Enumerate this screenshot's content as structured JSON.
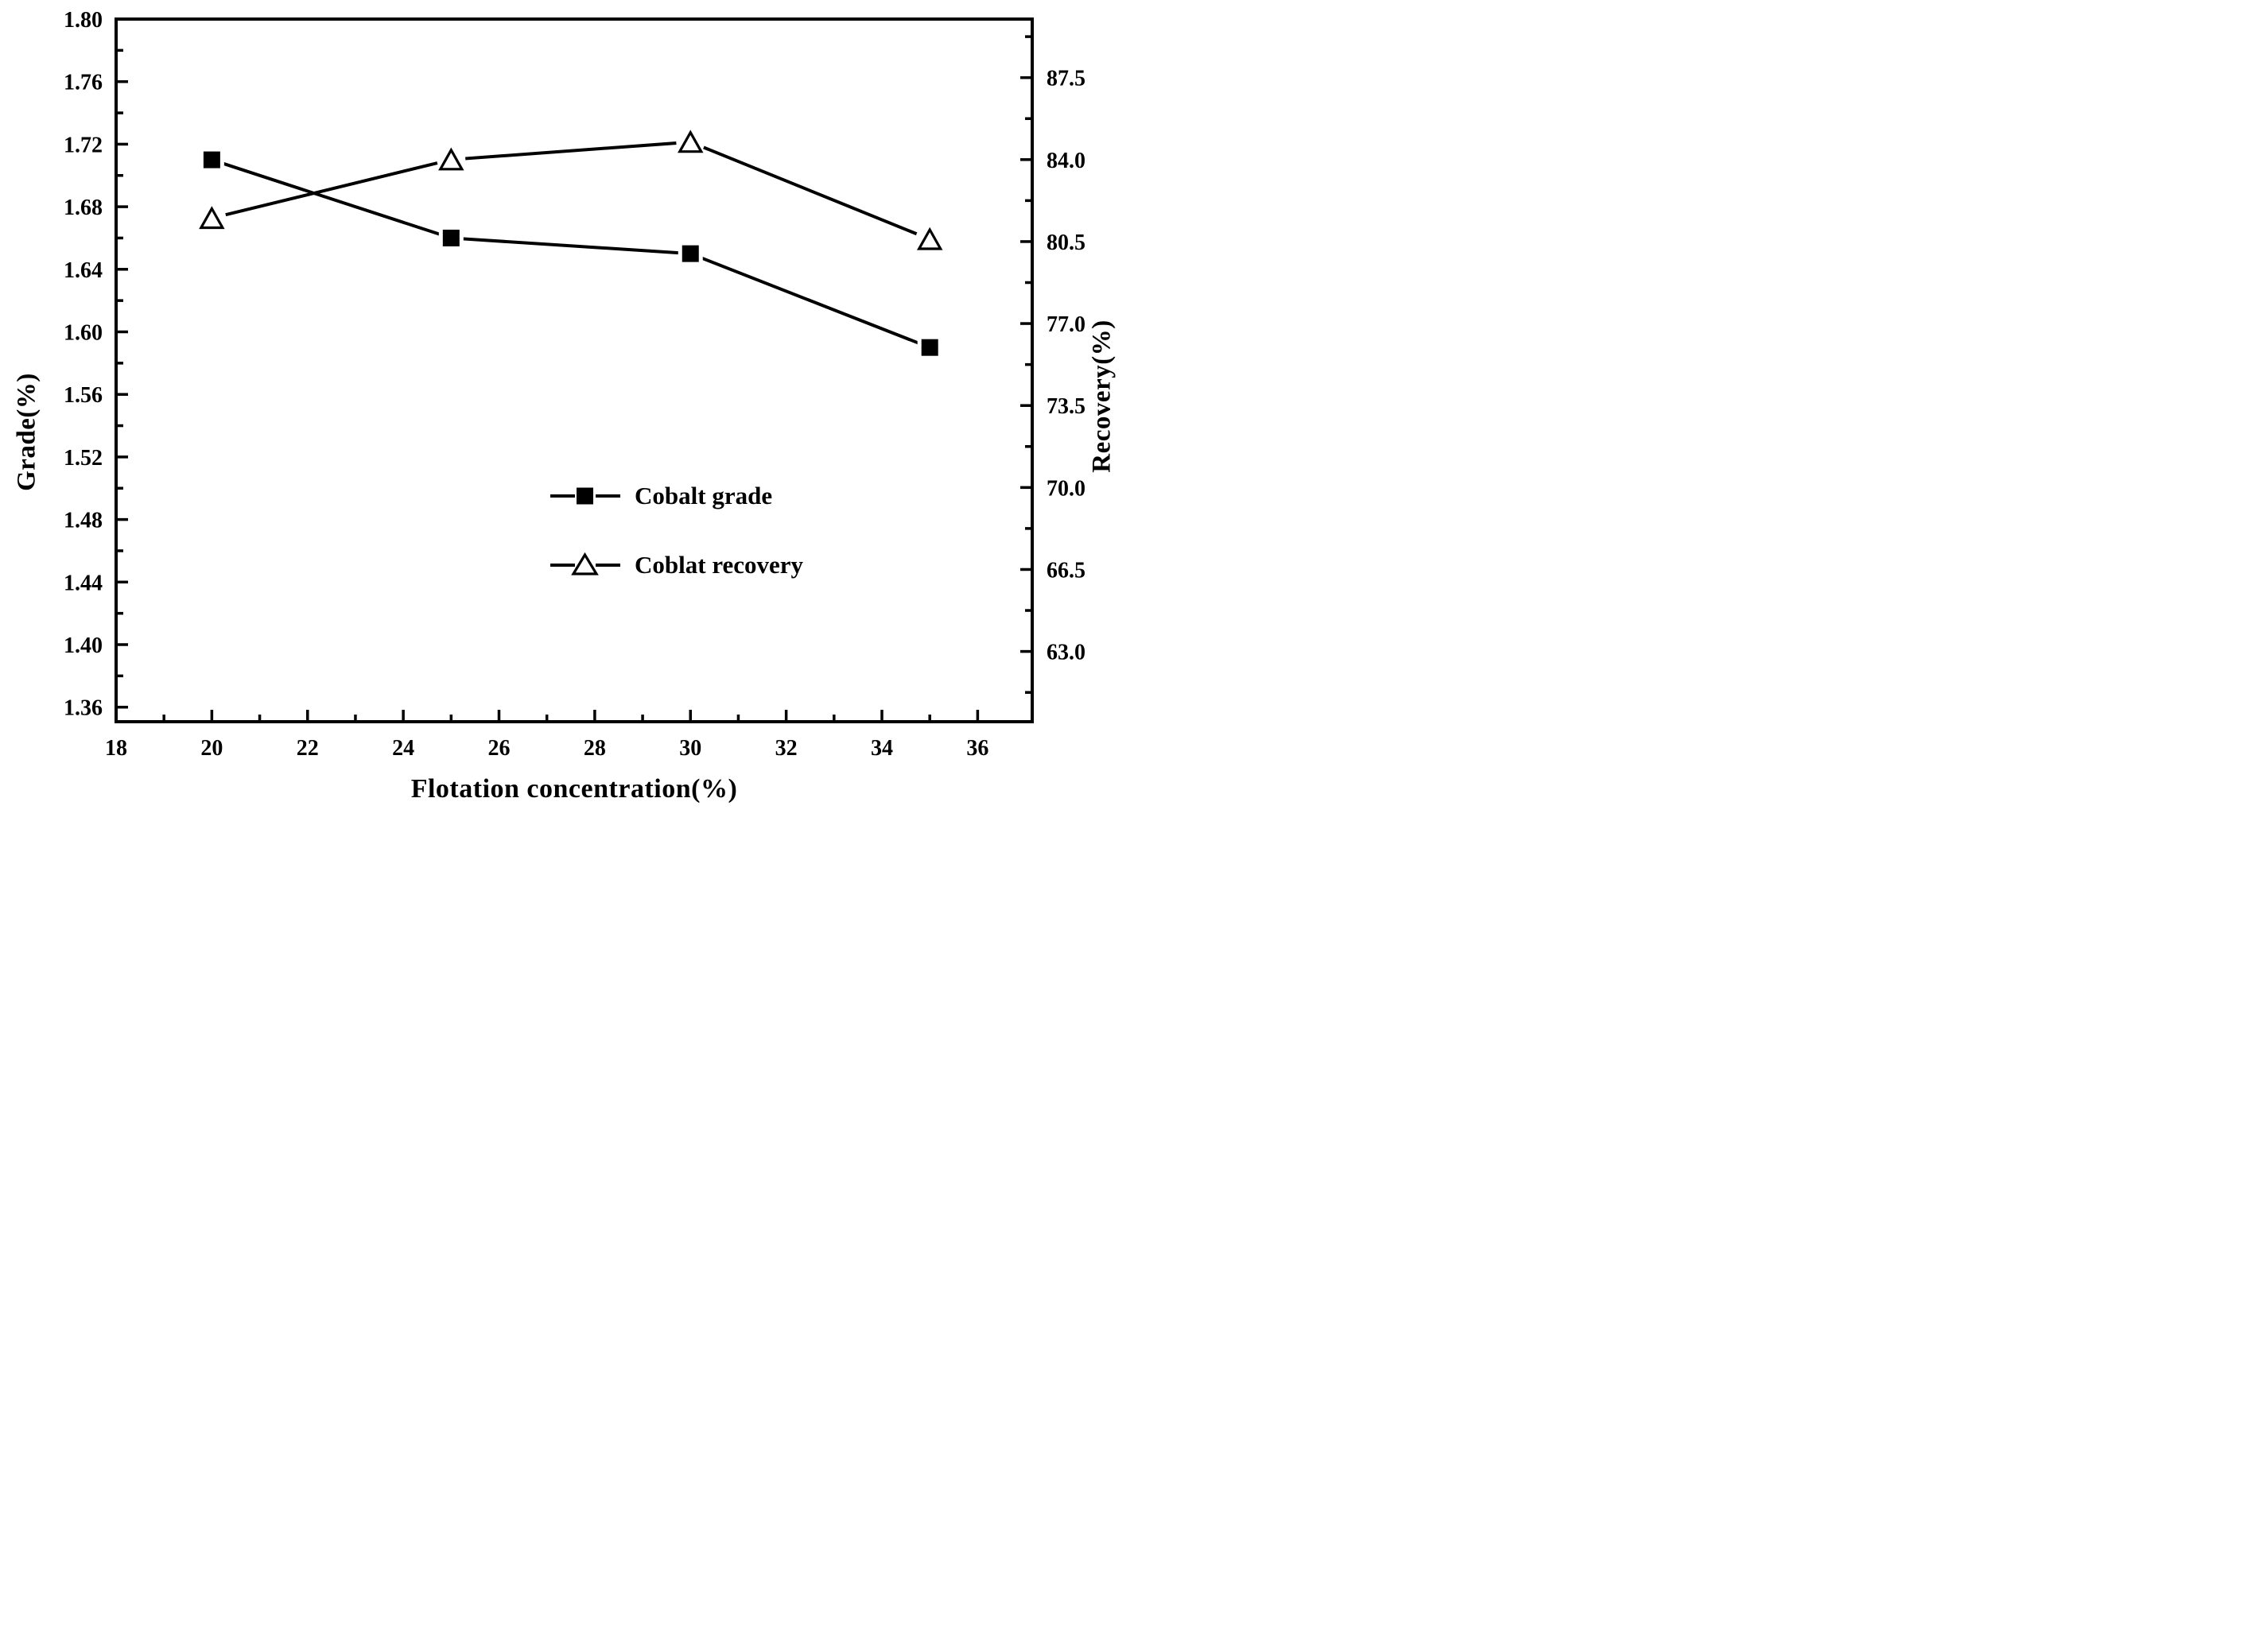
{
  "chart_data": {
    "type": "line",
    "title": "",
    "xlabel": "Flotation concentration(%)",
    "ylabel_left": "Grade(%)",
    "ylabel_right": "Recovery(%)",
    "grid": false,
    "background_color": "#ffffff",
    "foreground_color": "#000000",
    "x_axis": {
      "min": 18,
      "max": 37.14,
      "major_ticks": [
        18,
        20,
        22,
        24,
        26,
        28,
        30,
        32,
        34,
        36
      ],
      "tick_labels": [
        "18",
        "20",
        "22",
        "24",
        "26",
        "28",
        "30",
        "32",
        "34",
        "36"
      ],
      "minor_ticks": [
        19,
        21,
        23,
        25,
        27,
        29,
        31,
        33,
        35
      ]
    },
    "y_axis_left": {
      "min": 1.3507,
      "max": 1.8,
      "major_ticks": [
        1.36,
        1.4,
        1.44,
        1.48,
        1.52,
        1.56,
        1.6,
        1.64,
        1.68,
        1.72,
        1.76,
        1.8
      ],
      "tick_labels": [
        "1.36",
        "1.40",
        "1.44",
        "1.48",
        "1.52",
        "1.56",
        "1.60",
        "1.64",
        "1.68",
        "1.72",
        "1.76",
        "1.80"
      ],
      "minor_ticks": [
        1.38,
        1.42,
        1.46,
        1.5,
        1.54,
        1.58,
        1.62,
        1.66,
        1.7,
        1.74,
        1.78
      ]
    },
    "y_axis_right": {
      "min": 60,
      "max": 90,
      "major_ticks": [
        63.0,
        66.5,
        70.0,
        73.5,
        77.0,
        80.5,
        84.0,
        87.5
      ],
      "tick_labels": [
        "63.0",
        "66.5",
        "70.0",
        "73.5",
        "77.0",
        "80.5",
        "84.0",
        "87.5"
      ],
      "minor_ticks": [
        61.25,
        64.75,
        68.25,
        71.75,
        75.25,
        78.75,
        82.25,
        85.75,
        89.25
      ]
    },
    "series": [
      {
        "name": "Cobalt grade",
        "axis": "left",
        "marker": "filled-square",
        "line_style": "solid",
        "color": "#000000",
        "x": [
          20,
          25,
          30,
          35
        ],
        "y": [
          1.71,
          1.66,
          1.65,
          1.59
        ]
      },
      {
        "name": "Coblat recovery",
        "axis": "right",
        "marker": "open-triangle",
        "line_style": "solid",
        "color": "#000000",
        "x": [
          20,
          25,
          30,
          35
        ],
        "y": [
          81.5,
          84.0,
          84.75,
          80.6
        ]
      }
    ],
    "legend": {
      "position": "inside-center-right",
      "entries": [
        {
          "label": "Cobalt grade",
          "marker": "filled-square"
        },
        {
          "label": "Coblat recovery",
          "marker": "open-triangle"
        }
      ]
    }
  }
}
